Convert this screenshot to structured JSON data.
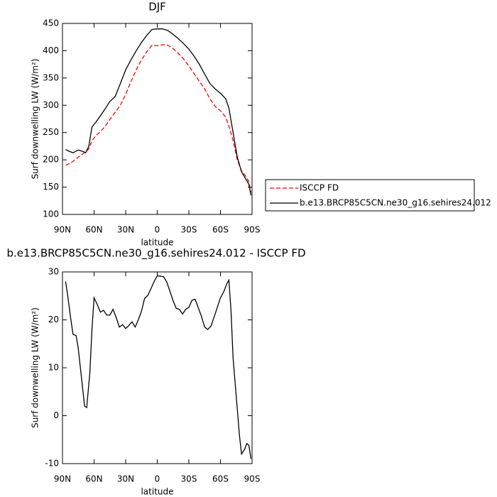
{
  "chart_data": [
    {
      "type": "line",
      "title": "DJF",
      "xlabel": "latitude",
      "ylabel": "Surf downwelling LW (W/m²)",
      "x": [
        87,
        84,
        80,
        75,
        70,
        68,
        65,
        62,
        58,
        55,
        50,
        45,
        40,
        35,
        30,
        25,
        20,
        15,
        10,
        5,
        0,
        -5,
        -10,
        -15,
        -20,
        -25,
        -30,
        -35,
        -40,
        -45,
        -50,
        -55,
        -60,
        -65,
        -68,
        -72,
        -76,
        -80,
        -84,
        -87,
        -89
      ],
      "series": [
        {
          "name": "ISCCP FD",
          "color": "#ff0000",
          "line_style": "dashed",
          "values": [
            190,
            193,
            197,
            205,
            212,
            214,
            220,
            235,
            245,
            250,
            260,
            274,
            287,
            300,
            320,
            343,
            365,
            383,
            398,
            410,
            409,
            411,
            410,
            404,
            395,
            385,
            372,
            358,
            344,
            330,
            312,
            298,
            290,
            278,
            262,
            235,
            200,
            180,
            170,
            160,
            140
          ]
        },
        {
          "name": "b.e13.BRCP85C5CN.ne30_g16.sehires24.012",
          "color": "#000000",
          "line_style": "solid",
          "values": [
            219,
            216,
            213,
            218,
            215,
            213,
            225,
            260,
            270,
            278,
            292,
            307,
            316,
            340,
            365,
            383,
            400,
            415,
            428,
            439,
            440,
            440,
            437,
            430,
            422,
            413,
            403,
            390,
            375,
            357,
            340,
            330,
            322,
            312,
            295,
            250,
            205,
            178,
            165,
            155,
            135
          ]
        }
      ],
      "xlim": [
        90,
        -90
      ],
      "xticks": [
        {
          "value": 90,
          "label": "90N"
        },
        {
          "value": 60,
          "label": "60N"
        },
        {
          "value": 30,
          "label": "30N"
        },
        0,
        {
          "value": -30,
          "label": "30S"
        },
        {
          "value": -60,
          "label": "60S"
        },
        {
          "value": -90,
          "label": "90S"
        }
      ],
      "ylim": [
        100,
        450
      ],
      "yticks": [
        100,
        150,
        200,
        250,
        300,
        350,
        400,
        450
      ],
      "legend": "right",
      "grid": false
    },
    {
      "type": "line",
      "title": "b.e13.BRCP85C5CN.ne30_g16.sehires24.012 - ISCCP FD",
      "xlabel": "latitude",
      "ylabel": "Surf downwelling LW (W/m²)",
      "x": [
        87,
        85,
        82,
        80,
        77,
        75,
        72,
        69,
        67,
        64,
        62,
        60,
        57,
        54,
        51,
        48,
        45,
        42,
        39,
        36,
        33,
        30,
        27,
        24,
        21,
        18,
        15,
        12,
        9,
        6,
        3,
        0,
        -3,
        -6,
        -9,
        -12,
        -15,
        -18,
        -21,
        -24,
        -27,
        -30,
        -33,
        -36,
        -39,
        -42,
        -45,
        -48,
        -51,
        -54,
        -57,
        -60,
        -63,
        -66,
        -68,
        -70,
        -72,
        -75,
        -78,
        -80,
        -83,
        -85,
        -87,
        -89
      ],
      "series": [
        {
          "color": "#000000",
          "line_style": "solid",
          "values": [
            28,
            25,
            20,
            17,
            16.7,
            14,
            8,
            2,
            1.7,
            9,
            18,
            24.6,
            23.2,
            21.6,
            22,
            21,
            21,
            22.2,
            20.5,
            18.5,
            19,
            18.2,
            18.8,
            19.6,
            18.5,
            20,
            21.8,
            24.5,
            25.1,
            26.5,
            28,
            29.2,
            29.1,
            29,
            27.9,
            26,
            24,
            22.4,
            22.2,
            21.2,
            22.2,
            22.6,
            24.1,
            24.3,
            22.5,
            20.7,
            18.5,
            18,
            18.7,
            20.6,
            22.6,
            24.6,
            25.8,
            27.5,
            28.3,
            22,
            12,
            4,
            -4,
            -8,
            -7,
            -5.8,
            -6.2,
            -9
          ]
        }
      ],
      "xlim": [
        90,
        -90
      ],
      "xticks": [
        {
          "value": 90,
          "label": "90N"
        },
        {
          "value": 60,
          "label": "60N"
        },
        {
          "value": 30,
          "label": "30N"
        },
        0,
        {
          "value": -30,
          "label": "30S"
        },
        {
          "value": -60,
          "label": "60S"
        },
        {
          "value": -90,
          "label": "90S"
        }
      ],
      "ylim": [
        -10,
        30
      ],
      "yticks": [
        -10,
        0,
        10,
        20,
        30
      ],
      "grid": false
    }
  ]
}
